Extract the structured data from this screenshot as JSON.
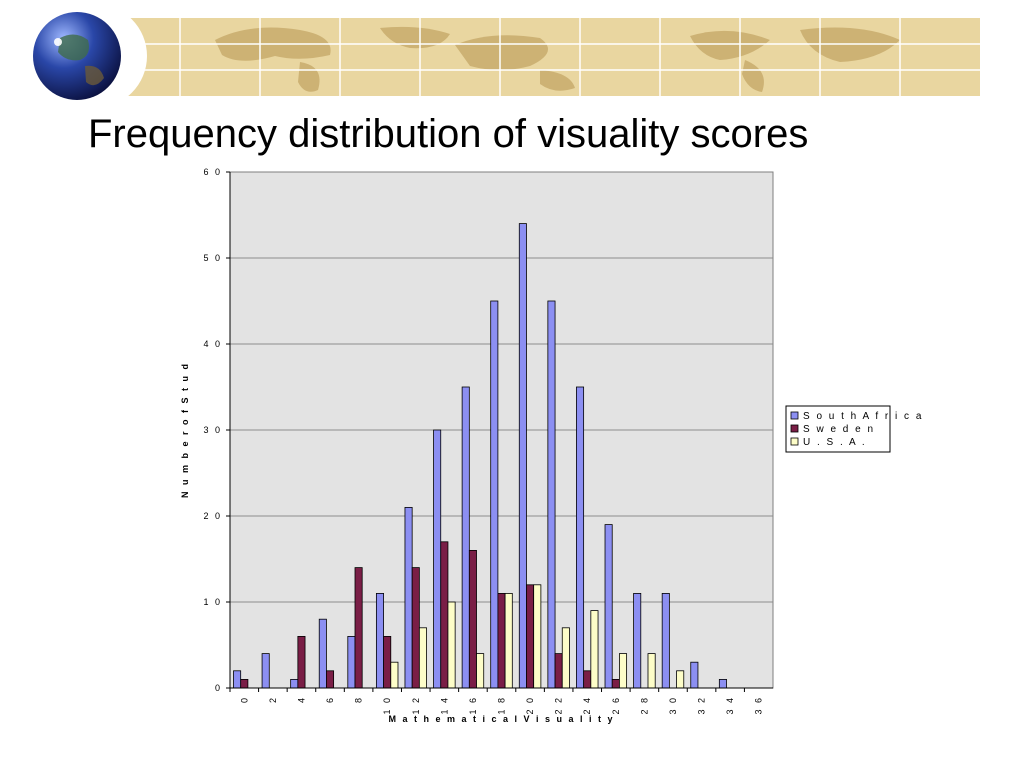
{
  "slide": {
    "title": "Frequency distribution of visuality scores"
  },
  "colors": {
    "banner_bg": "#e9d6a0",
    "banner_land": "#cdb274",
    "plot_bg": "#e3e3e3",
    "gridline": "#8c8c8c"
  },
  "chart_data": {
    "type": "bar",
    "xlabel": "M a t h e m a t i c a l   V i s u a l i t y",
    "ylabel": "N u m b e r   o f   S t u d",
    "ylim": [
      0,
      60
    ],
    "yticks": [
      0,
      10,
      20,
      30,
      40,
      50,
      60
    ],
    "ytick_labels": [
      "0",
      "1 0",
      "2 0",
      "3 0",
      "4 0",
      "5 0",
      "6 0"
    ],
    "grid": true,
    "legend_position": "right",
    "categories": [
      "0",
      "2",
      "4",
      "6",
      "8",
      "1 0",
      "1 2",
      "1 4",
      "1 6",
      "1 8",
      "2 0",
      "2 2",
      "2 4",
      "2 6",
      "2 8",
      "3 0",
      "3 2",
      "3 4",
      "3 6"
    ],
    "series": [
      {
        "name": "S o u t h   A f r i c a",
        "color": "#8c8ff2",
        "values": [
          2,
          4,
          1,
          8,
          6,
          11,
          21,
          30,
          35,
          45,
          54,
          45,
          35,
          19,
          11,
          11,
          3,
          1,
          0
        ]
      },
      {
        "name": "S w e d e n",
        "color": "#7a1e46",
        "values": [
          1,
          0,
          6,
          2,
          14,
          6,
          14,
          17,
          16,
          11,
          12,
          4,
          2,
          1,
          0,
          0,
          0,
          0,
          0
        ]
      },
      {
        "name": "U . S . A .",
        "color": "#fdfdc8",
        "values": [
          0,
          0,
          0,
          0,
          0,
          3,
          7,
          10,
          4,
          11,
          12,
          7,
          9,
          4,
          4,
          2,
          0,
          0,
          0
        ]
      }
    ]
  }
}
